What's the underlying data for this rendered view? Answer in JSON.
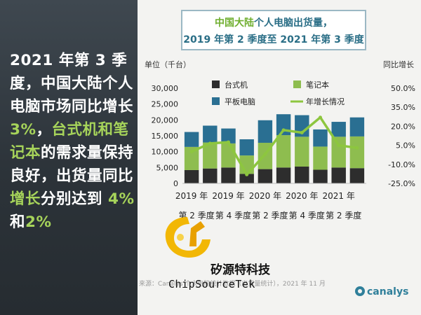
{
  "left_panel": {
    "text_1": "2021 年第 3 季度，中国大陆个人电脑市场同比增长 ",
    "hl_1": "3%",
    "text_2": "，",
    "hl_2": "台式机和笔记本",
    "text_3": "的需求量保持良好，出货量同比",
    "hl_3": "增长",
    "text_4": "分别达到 ",
    "hl_4": "4%",
    "text_5": "和",
    "hl_5": "2%"
  },
  "chart_title": {
    "line1_hl": "中国大陆",
    "line1_rest": "个人电脑出货量，",
    "line2": "2019 年第 2 季度至 2021 年第 3 季度"
  },
  "chart_data": {
    "type": "bar",
    "ylabel": "单位（千台）",
    "y2label": "同比增长",
    "ylim": [
      0,
      30000
    ],
    "y2lim": [
      -25,
      50
    ],
    "y_ticks": [
      "0",
      "5,000",
      "10,000",
      "15,000",
      "20,000",
      "25,000",
      "30,000"
    ],
    "y2_ticks": [
      "-25.0%",
      "-10.0%",
      "5.0%",
      "20.0%",
      "35.0%",
      "50.0%"
    ],
    "x_labels_row1": [
      "2019 年",
      "2019 年",
      "2020 年",
      "2020 年",
      "2021 年"
    ],
    "x_labels_row2": [
      "第 2 季度",
      "第 4 季度",
      "第 2 季度",
      "第 4 季度",
      "第 2 季度"
    ],
    "stacked": true,
    "series": [
      {
        "name": "台式机",
        "color": "#2d2d2d",
        "values": [
          4200,
          4700,
          5000,
          3000,
          4500,
          5000,
          5300,
          4300,
          5000,
          4800
        ]
      },
      {
        "name": "笔记本",
        "color": "#8ebd4f",
        "values": [
          7300,
          8200,
          7600,
          5800,
          8300,
          10200,
          9400,
          7300,
          9700,
          10000
        ]
      },
      {
        "name": "平板电脑",
        "color": "#2a6f92",
        "values": [
          4700,
          5300,
          4700,
          5100,
          7100,
          6600,
          6800,
          5400,
          4700,
          6000
        ]
      }
    ],
    "line": {
      "name": "年增长情况",
      "color": "#8dc63f",
      "values": [
        0,
        6.5,
        7.5,
        -18,
        -2,
        17,
        15,
        27,
        5,
        3
      ]
    }
  },
  "watermark": {
    "cn": "矽源特科技",
    "en": "ChipSourceTek"
  },
  "source": "来源：Canalys 个人电脑统计数据（出货量统计），2021 年 11 月",
  "brand": "canalys",
  "colors": {
    "accent": "#8ebd4f",
    "title": "#2a6e86"
  }
}
